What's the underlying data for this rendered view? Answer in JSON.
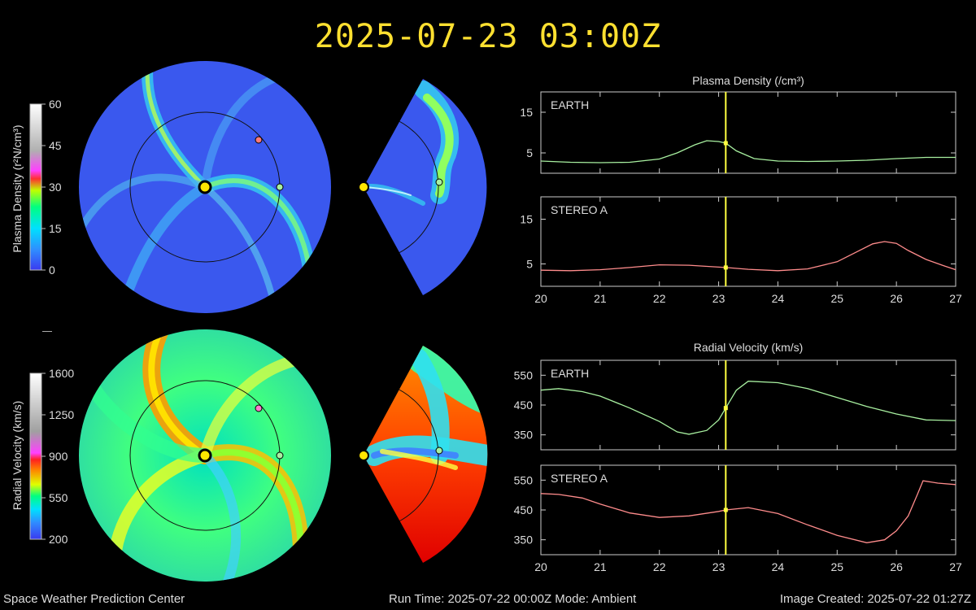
{
  "header": {
    "title": "2025-07-23 03:00Z"
  },
  "footer": {
    "organization": "Space Weather Prediction Center",
    "run_time": "Run Time: 2025-07-22 00:00Z  Mode: Ambient",
    "image_created": "Image Created: 2025-07-22 01:27Z"
  },
  "colors": {
    "earth_trace": "#a8f0a0",
    "stereo_trace": "#ff8c8c",
    "cursor": "#ffff40",
    "title": "#ffe030",
    "sun": "#ffe600"
  },
  "colorbars": [
    {
      "label": "Plasma Density (r²N/cm³)",
      "ticks": [
        "0",
        "15",
        "30",
        "45",
        "60"
      ],
      "range": [
        0,
        60
      ]
    },
    {
      "label": "Radial Velocity (km/s)",
      "ticks": [
        "200",
        "550",
        "900",
        "1250",
        "1600"
      ],
      "range": [
        200,
        1600
      ]
    }
  ],
  "chart_data": [
    {
      "type": "line",
      "title": "Plasma Density (/cm³)",
      "panel_label": "EARTH",
      "xlim": [
        20,
        27
      ],
      "ylim": [
        0,
        20
      ],
      "yticks": [
        5,
        15
      ],
      "xticks": [
        "20",
        "21",
        "22",
        "23",
        "24",
        "25",
        "26",
        "27"
      ],
      "cursor_x": 23.12,
      "x": [
        20,
        20.5,
        21,
        21.5,
        22,
        22.3,
        22.6,
        22.8,
        23.0,
        23.12,
        23.3,
        23.6,
        24,
        24.5,
        25,
        25.5,
        26,
        26.5,
        27
      ],
      "y": [
        3.0,
        2.7,
        2.6,
        2.7,
        3.5,
        5.0,
        7.0,
        8.0,
        7.8,
        7.4,
        5.5,
        3.6,
        3.0,
        2.9,
        3.0,
        3.2,
        3.6,
        3.9,
        3.9
      ]
    },
    {
      "type": "line",
      "panel_label": "STEREO A",
      "xlim": [
        20,
        27
      ],
      "ylim": [
        0,
        20
      ],
      "yticks": [
        5,
        15
      ],
      "xticks": [
        "20",
        "21",
        "22",
        "23",
        "24",
        "25",
        "26",
        "27"
      ],
      "cursor_x": 23.12,
      "x": [
        20,
        20.5,
        21,
        21.5,
        22,
        22.5,
        23,
        23.12,
        23.5,
        24,
        24.5,
        25,
        25.3,
        25.6,
        25.8,
        26.0,
        26.2,
        26.5,
        26.8,
        27
      ],
      "y": [
        3.6,
        3.5,
        3.7,
        4.2,
        4.8,
        4.7,
        4.3,
        4.2,
        3.8,
        3.5,
        3.9,
        5.5,
        7.5,
        9.5,
        10.0,
        9.6,
        8.0,
        6.0,
        4.6,
        3.7
      ]
    },
    {
      "type": "line",
      "title": "Radial Velocity (km/s)",
      "panel_label": "EARTH",
      "xlim": [
        20,
        27
      ],
      "ylim": [
        300,
        600
      ],
      "yticks": [
        350,
        450,
        550
      ],
      "xticks": [
        "20",
        "21",
        "22",
        "23",
        "24",
        "25",
        "26",
        "27"
      ],
      "cursor_x": 23.12,
      "x": [
        20,
        20.3,
        20.7,
        21,
        21.5,
        22,
        22.3,
        22.5,
        22.8,
        23.0,
        23.12,
        23.3,
        23.5,
        24,
        24.5,
        25,
        25.5,
        26,
        26.5,
        27
      ],
      "y": [
        500,
        505,
        495,
        480,
        440,
        395,
        360,
        352,
        365,
        400,
        440,
        500,
        530,
        525,
        505,
        475,
        445,
        420,
        400,
        398
      ]
    },
    {
      "type": "line",
      "panel_label": "STEREO A",
      "xlim": [
        20,
        27
      ],
      "ylim": [
        300,
        600
      ],
      "yticks": [
        350,
        450,
        550
      ],
      "xticks": [
        "20",
        "21",
        "22",
        "23",
        "24",
        "25",
        "26",
        "27"
      ],
      "cursor_x": 23.12,
      "x": [
        20,
        20.3,
        20.7,
        21,
        21.5,
        22,
        22.5,
        23,
        23.12,
        23.5,
        24,
        24.5,
        25,
        25.5,
        25.8,
        26.0,
        26.2,
        26.35,
        26.45,
        26.7,
        27
      ],
      "y": [
        505,
        502,
        490,
        470,
        440,
        425,
        430,
        445,
        450,
        458,
        438,
        400,
        365,
        340,
        350,
        380,
        430,
        500,
        548,
        540,
        535
      ]
    }
  ]
}
